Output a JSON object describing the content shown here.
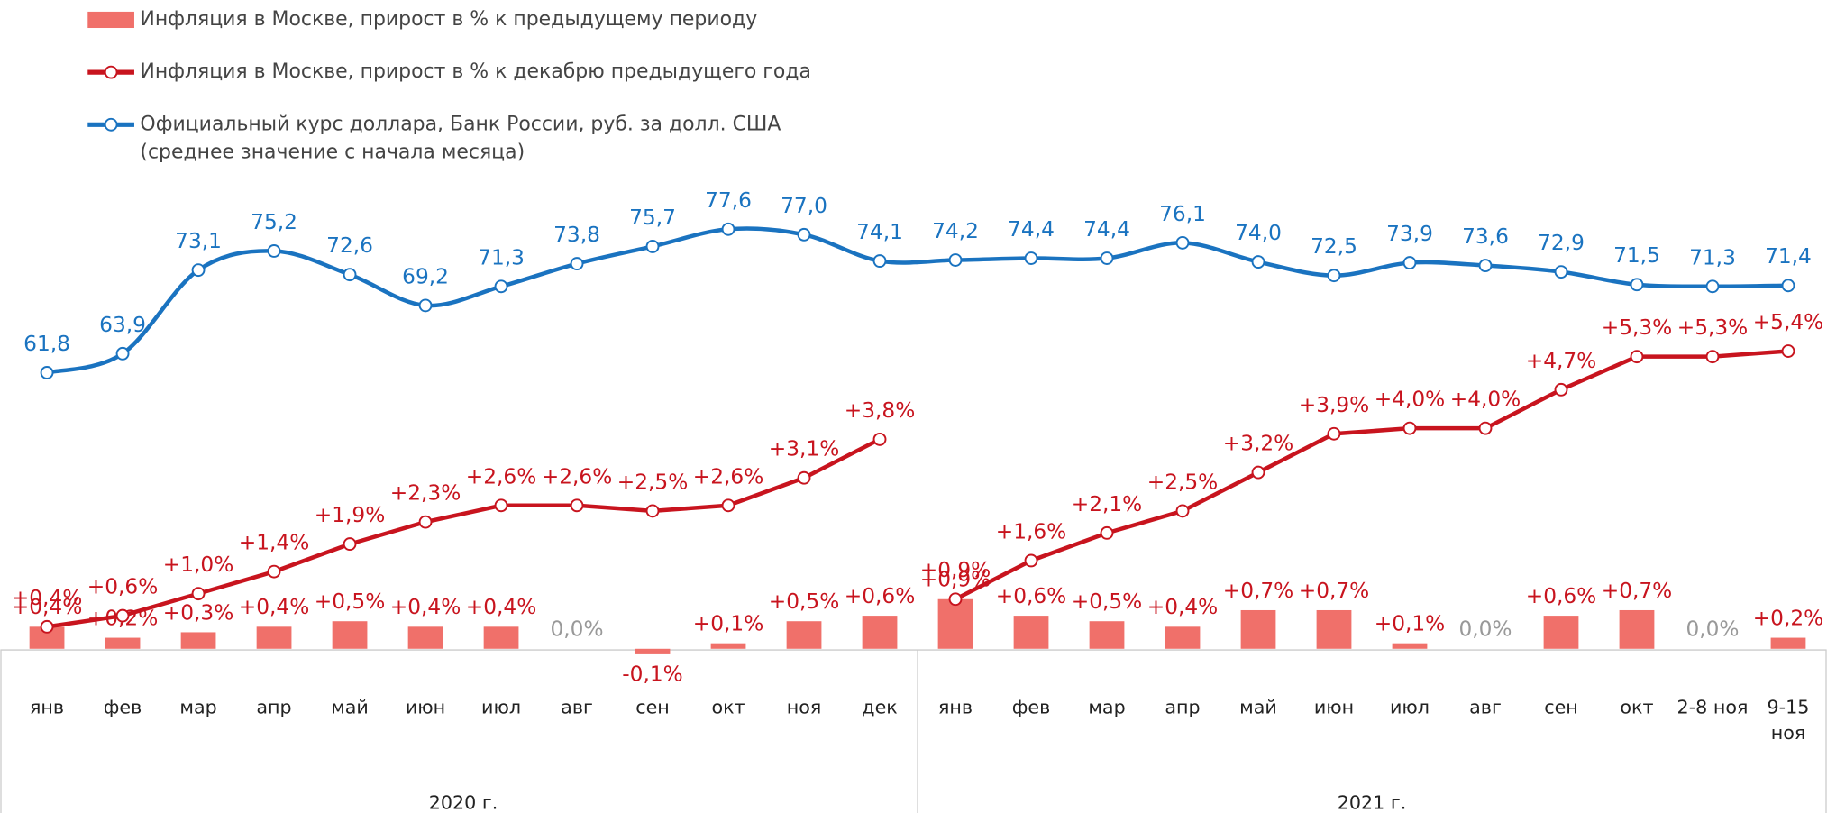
{
  "chart_data": {
    "type": "combo",
    "groups": [
      {
        "label": "2020 г.",
        "categories": [
          "янв",
          "фев",
          "мар",
          "апр",
          "май",
          "июн",
          "июл",
          "авг",
          "сен",
          "окт",
          "ноя",
          "дек"
        ]
      },
      {
        "label": "2021 г.",
        "categories": [
          "янв",
          "фев",
          "мар",
          "апр",
          "май",
          "июн",
          "июл",
          "авг",
          "сен",
          "окт",
          "2-8 ноя",
          "9-15\nноя"
        ]
      }
    ],
    "ylim": [
      0,
      8.6
    ],
    "y2lim": [
      31.4,
      83.6
    ],
    "series": [
      {
        "name": "Инфляция в Москве, прирост в % к предыдущему периоду",
        "type": "bar",
        "color": "#f0706a",
        "label_color": "#c8141e",
        "zero_color": "#999999",
        "values": [
          0.4,
          0.2,
          0.3,
          0.4,
          0.5,
          0.4,
          0.4,
          0.0,
          -0.1,
          0.1,
          0.5,
          0.6,
          0.9,
          0.6,
          0.5,
          0.4,
          0.7,
          0.7,
          0.1,
          0.0,
          0.6,
          0.7,
          0.0,
          0.2
        ],
        "value_labels": [
          "+0,4%",
          "+0,2%",
          "+0,3%",
          "+0,4%",
          "+0,5%",
          "+0,4%",
          "+0,4%",
          "0,0%",
          "-0,1%",
          "+0,1%",
          "+0,5%",
          "+0,6%",
          "+0,9%",
          "+0,6%",
          "+0,5%",
          "+0,4%",
          "+0,7%",
          "+0,7%",
          "+0,1%",
          "0,0%",
          "+0,6%",
          "+0,7%",
          "0,0%",
          "+0,2%"
        ]
      },
      {
        "name": "Инфляция в Москве, прирост в % к декабрю предыдущего года",
        "type": "line",
        "color": "#c8141e",
        "values": [
          0.4,
          0.6,
          1.0,
          1.4,
          1.9,
          2.3,
          2.6,
          2.6,
          2.5,
          2.6,
          3.1,
          3.8,
          0.9,
          1.6,
          2.1,
          2.5,
          3.2,
          3.9,
          4.0,
          4.0,
          4.7,
          5.3,
          5.3,
          5.4
        ],
        "value_labels": [
          "+0,4%",
          "+0,6%",
          "+1,0%",
          "+1,4%",
          "+1,9%",
          "+2,3%",
          "+2,6%",
          "+2,6%",
          "+2,5%",
          "+2,6%",
          "+3,1%",
          "+3,8%",
          "+0,9%",
          "+1,6%",
          "+2,1%",
          "+2,5%",
          "+3,2%",
          "+3,9%",
          "+4,0%",
          "+4,0%",
          "+4,7%",
          "+5,3%",
          "+5,3%",
          "+5,4%"
        ]
      },
      {
        "name": "Официальный курс доллара, Банк России, руб. за долл. США\n(среднее значение с начала месяца)",
        "type": "line",
        "smooth": true,
        "axis": "y2",
        "color": "#1a73c0",
        "values": [
          61.8,
          63.9,
          73.1,
          75.2,
          72.6,
          69.2,
          71.3,
          73.8,
          75.7,
          77.6,
          77.0,
          74.1,
          74.2,
          74.4,
          74.4,
          76.1,
          74.0,
          72.5,
          73.9,
          73.6,
          72.9,
          71.5,
          71.3,
          71.4
        ],
        "value_labels": [
          "61,8",
          "63,9",
          "73,1",
          "75,2",
          "72,6",
          "69,2",
          "71,3",
          "73,8",
          "75,7",
          "77,6",
          "77,0",
          "74,1",
          "74,2",
          "74,4",
          "74,4",
          "76,1",
          "74,0",
          "72,5",
          "73,9",
          "73,6",
          "72,9",
          "71,5",
          "71,3",
          "71,4"
        ]
      }
    ]
  }
}
